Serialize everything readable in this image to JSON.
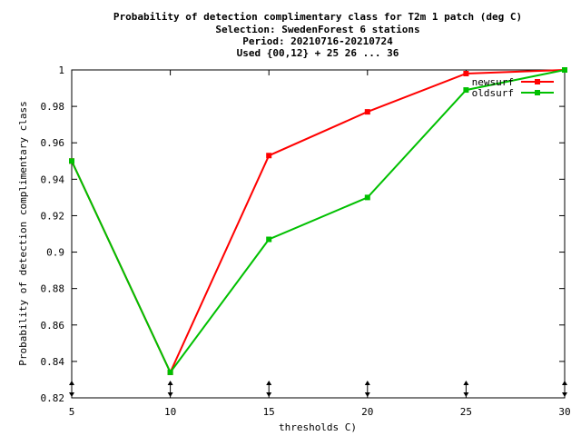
{
  "chart_data": {
    "type": "line",
    "title_lines": [
      "Probability of detection complimentary class  for T2m 1 patch (deg C)",
      "Selection: SwedenForest      6 stations",
      "Period: 20210716-20210724",
      "Used {00,12} + 25 26 ... 36"
    ],
    "xlabel": "thresholds C)",
    "ylabel": "Probability of detection complimentary class",
    "x": [
      5,
      10,
      15,
      20,
      25,
      30
    ],
    "xlim": [
      5,
      30
    ],
    "ylim": [
      0.82,
      1.0
    ],
    "x_ticks": [
      "5",
      "10",
      "15",
      "20",
      "25",
      "30"
    ],
    "y_ticks": [
      "0.82",
      "0.84",
      "0.86",
      "0.88",
      "0.9",
      "0.92",
      "0.94",
      "0.96",
      "0.98",
      "1"
    ],
    "grid": false,
    "legend_position": "top-right",
    "series": [
      {
        "name": "newsurf",
        "color": "#ff0000",
        "values": [
          0.95,
          0.834,
          0.953,
          0.977,
          0.998,
          1.0
        ]
      },
      {
        "name": "oldsurf",
        "color": "#00c000",
        "values": [
          0.95,
          0.834,
          0.907,
          0.93,
          0.989,
          1.0
        ]
      }
    ]
  }
}
